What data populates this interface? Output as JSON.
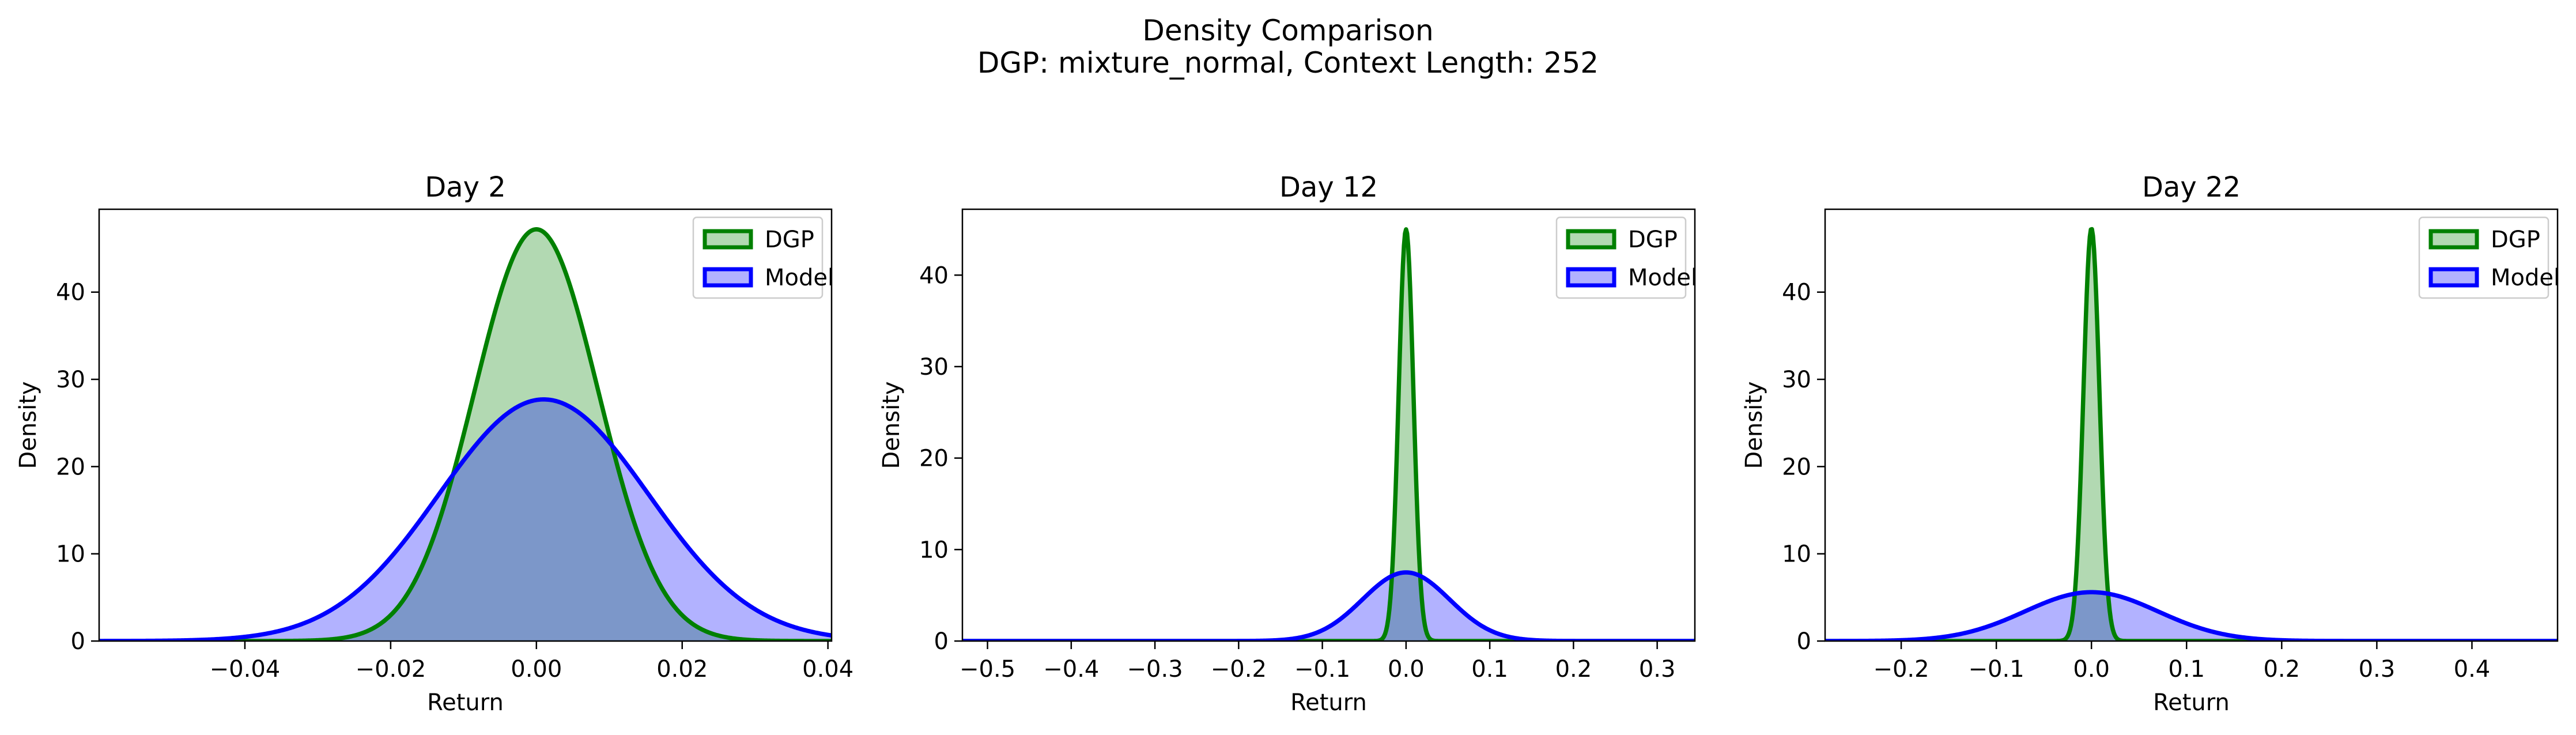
{
  "figure": {
    "title": "Density Comparison",
    "subtitle": "DGP: mixture_normal, Context Length: 252"
  },
  "colors": {
    "dgp": "#008000",
    "dgp_fill": "#b2d8b2",
    "model": "#0000ff",
    "model_fill": "#b2b2ff",
    "overlap_fill": "#7f99c8"
  },
  "chart_data": [
    {
      "type": "area",
      "title": "Day 2",
      "xlabel": "Return",
      "ylabel": "Density",
      "xlim": [
        -0.06,
        0.0405
      ],
      "ylim": [
        0,
        49.5
      ],
      "xticks": [
        -0.04,
        -0.02,
        0.0,
        0.02,
        0.04
      ],
      "xtick_labels": [
        "−0.04",
        "−0.02",
        "0.00",
        "0.02",
        "0.04"
      ],
      "yticks": [
        0,
        10,
        20,
        30,
        40
      ],
      "ytick_labels": [
        "0",
        "10",
        "20",
        "30",
        "40"
      ],
      "legend": "top-right",
      "series": [
        {
          "name": "DGP",
          "peak_x": 0.0,
          "peak_density": 47.2,
          "std": 0.0085
        },
        {
          "name": "Model",
          "peak_x": 0.001,
          "peak_density": 27.7,
          "std": 0.0144
        }
      ]
    },
    {
      "type": "area",
      "title": "Day 12",
      "xlabel": "Return",
      "ylabel": "Density",
      "xlim": [
        -0.53,
        0.345
      ],
      "ylim": [
        0,
        47.2
      ],
      "xticks": [
        -0.5,
        -0.4,
        -0.3,
        -0.2,
        -0.1,
        0.0,
        0.1,
        0.2,
        0.3
      ],
      "xtick_labels": [
        "−0.5",
        "−0.4",
        "−0.3",
        "−0.2",
        "−0.1",
        "0.0",
        "0.1",
        "0.2",
        "0.3"
      ],
      "yticks": [
        0,
        10,
        20,
        30,
        40
      ],
      "ytick_labels": [
        "0",
        "10",
        "20",
        "30",
        "40"
      ],
      "legend": "top-right",
      "series": [
        {
          "name": "DGP",
          "peak_x": 0.0,
          "peak_density": 45.0,
          "std": 0.0088
        },
        {
          "name": "Model",
          "peak_x": 0.0,
          "peak_density": 7.5,
          "std": 0.052
        }
      ]
    },
    {
      "type": "area",
      "title": "Day 22",
      "xlabel": "Return",
      "ylabel": "Density",
      "xlim": [
        -0.28,
        0.49
      ],
      "ylim": [
        0,
        49.5
      ],
      "xticks": [
        -0.2,
        -0.1,
        0.0,
        0.1,
        0.2,
        0.3,
        0.4
      ],
      "xtick_labels": [
        "−0.2",
        "−0.1",
        "0.0",
        "0.1",
        "0.2",
        "0.3",
        "0.4"
      ],
      "yticks": [
        0,
        10,
        20,
        30,
        40
      ],
      "ytick_labels": [
        "0",
        "10",
        "20",
        "30",
        "40"
      ],
      "legend": "top-right",
      "series": [
        {
          "name": "DGP",
          "peak_x": 0.0,
          "peak_density": 47.3,
          "std": 0.0084
        },
        {
          "name": "Model",
          "peak_x": 0.0,
          "peak_density": 5.6,
          "std": 0.07
        }
      ]
    }
  ]
}
